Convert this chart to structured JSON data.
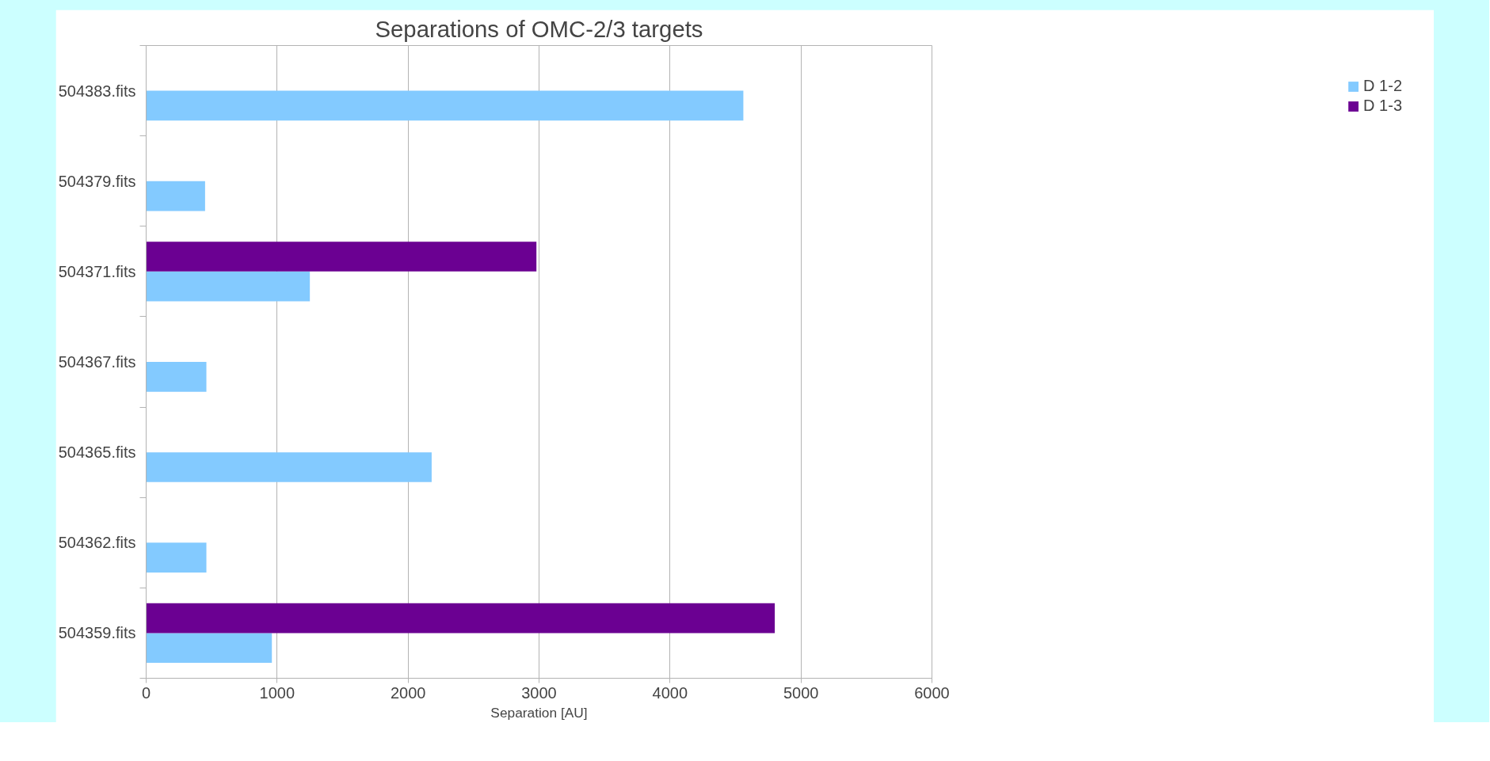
{
  "chart_data": {
    "type": "bar",
    "orientation": "horizontal",
    "title": "Separations of OMC-2/3 targets",
    "xlabel": "Separation [AU]",
    "categories": [
      "504383.fits",
      "504379.fits",
      "504371.fits",
      "504367.fits",
      "504365.fits",
      "504362.fits",
      "504359.fits"
    ],
    "series": [
      {
        "name": "D 1-2",
        "color": "#83caff",
        "values": [
          4560,
          450,
          1250,
          460,
          2180,
          460,
          960
        ]
      },
      {
        "name": "D 1-3",
        "color": "#6b0092",
        "values": [
          null,
          null,
          2980,
          null,
          null,
          null,
          4800
        ]
      }
    ],
    "xlim": [
      0,
      6000
    ],
    "xticks": [
      0,
      1000,
      2000,
      3000,
      4000,
      5000,
      6000
    ],
    "grid": "x",
    "legend": "right"
  }
}
